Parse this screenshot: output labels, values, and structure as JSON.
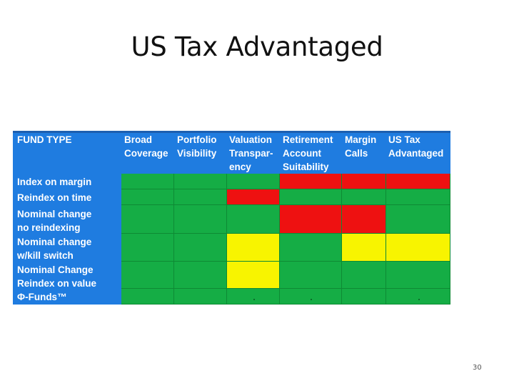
{
  "slide": {
    "title": "US Tax Advantaged",
    "page_number": "30"
  },
  "table": {
    "corner_label": "FUND TYPE",
    "columns": [
      "Broad\nCoverage",
      "Portfolio\nVisibility",
      "Valuation\nTranspar-\nency",
      "Retirement\nAccount\nSuitability",
      "Margin\nCalls",
      "US Tax\nAdvantaged"
    ],
    "rows": [
      {
        "label": "Index on margin",
        "cells": [
          "green",
          "green",
          "green",
          "red",
          "red",
          "red"
        ]
      },
      {
        "label": "Reindex on time",
        "cells": [
          "green",
          "green",
          "red",
          "green",
          "green",
          "green"
        ]
      },
      {
        "label": "Nominal change\nno reindexing",
        "cells": [
          "green",
          "green",
          "green",
          "red",
          "red",
          "green"
        ]
      },
      {
        "label": "Nominal change\nw/kill switch",
        "cells": [
          "green",
          "green",
          "yellow",
          "green",
          "yellow",
          "yellow"
        ]
      },
      {
        "label": "Nominal Change\nReindex on value",
        "cells": [
          "green",
          "green",
          "yellow",
          "green",
          "green",
          "green"
        ]
      },
      {
        "label": "Φ-Funds™",
        "cells": [
          "green",
          "green",
          "green",
          "green",
          "green",
          "green"
        ]
      }
    ],
    "colors": {
      "header_blue": "#1f7ce0",
      "green": "#15ad45",
      "red": "#ee1111",
      "yellow": "#f8f400"
    }
  }
}
